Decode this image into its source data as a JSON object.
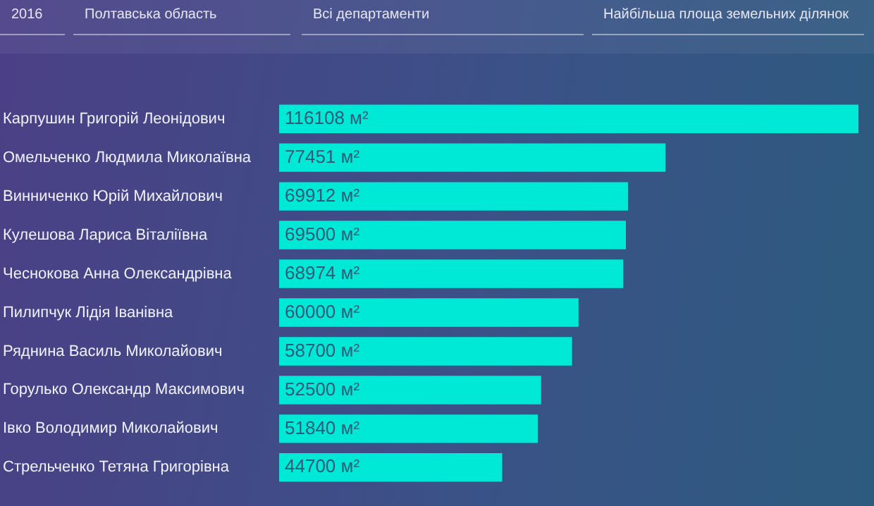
{
  "chart_data": {
    "type": "bar",
    "orientation": "horizontal",
    "annotations": [
      "2016",
      "Полтавська область",
      "Всі департаменти",
      "Найбільша площа земельних ділянок"
    ],
    "categories": [
      "Карпушин Григорій Леонідович",
      "Омельченко Людмила Миколаївна",
      "Винниченко Юрій Михайлович",
      "Кулешова Лариса Віталіївна",
      "Чеснокова Анна Олександрівна",
      "Пилипчук Лідія Іванівна",
      "Ряднина Василь Миколайович",
      "Горулько Олександр Максимович",
      "Івко Володимир Миколайович",
      "Стрельченко Тетяна Григорівна"
    ],
    "values": [
      116108,
      77451,
      69912,
      69500,
      68974,
      60000,
      58700,
      52500,
      51840,
      44700
    ],
    "value_labels": [
      "116108 м²",
      "77451 м²",
      "69912 м²",
      "69500 м²",
      "68974 м²",
      "60000 м²",
      "58700 м²",
      "52500 м²",
      "51840 м²",
      "44700 м²"
    ],
    "color": "#00e8d6"
  }
}
